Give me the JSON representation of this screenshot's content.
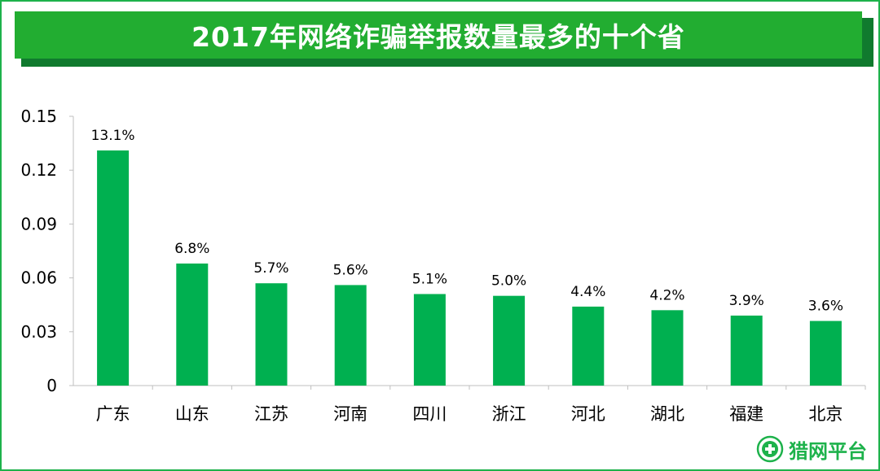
{
  "title": "2017年网络诈骗举报数量最多的十个省",
  "logo_text": "猎网平台",
  "colors": {
    "bar": "#00b050",
    "title_bg": "#22ad31",
    "title_shadow": "#107a2e",
    "border": "#1db24b"
  },
  "chart_data": {
    "type": "bar",
    "categories": [
      "广东",
      "山东",
      "江苏",
      "河南",
      "四川",
      "浙江",
      "河北",
      "湖北",
      "福建",
      "北京"
    ],
    "values": [
      0.131,
      0.068,
      0.057,
      0.056,
      0.051,
      0.05,
      0.044,
      0.042,
      0.039,
      0.036
    ],
    "data_labels": [
      "13.1%",
      "6.8%",
      "5.7%",
      "5.6%",
      "5.1%",
      "5.0%",
      "4.4%",
      "4.2%",
      "3.9%",
      "3.6%"
    ],
    "yticks": [
      "0",
      "0.03",
      "0.06",
      "0.09",
      "0.12",
      "0.15"
    ],
    "ylim": [
      0,
      0.15
    ],
    "grid": false,
    "legend": "none",
    "xlabel": "",
    "ylabel": ""
  }
}
